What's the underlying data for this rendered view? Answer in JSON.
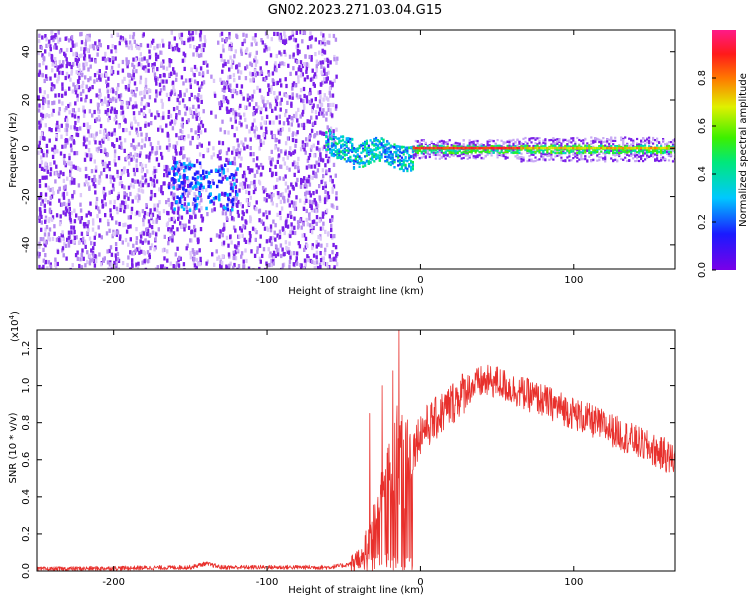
{
  "title": "GN02.2023.271.03.04.G15",
  "colors": {
    "axis": "#000000",
    "snr_line": "#e8302c"
  },
  "chart_data": [
    {
      "type": "heatmap",
      "xlabel": "Height of straight line (km)",
      "ylabel": "Frequency (Hz)",
      "xlim": [
        -250,
        166
      ],
      "ylim": [
        -50,
        49
      ],
      "xticks": [
        -200,
        -100,
        0,
        100
      ],
      "yticks": [
        -40,
        -20,
        0,
        20,
        40
      ],
      "colorbar": {
        "label": "Normalized spectral amplitude",
        "range": [
          0,
          1
        ],
        "ticks": [
          "0.0",
          "0.2",
          "0.4",
          "0.6",
          "0.8"
        ],
        "colormap": "rainbow (purple-blue-cyan-green-yellow-red-magenta)"
      },
      "features": {
        "noise_region_x": [
          -250,
          -55
        ],
        "signal_onset_x": -62,
        "peak_band_x": [
          -10,
          65
        ],
        "peak_frequency": 0
      }
    },
    {
      "type": "line",
      "xlabel": "Height of straight line (km)",
      "ylabel": "SNR (10 * v/v)",
      "yscale_label_base": "(x10",
      "yscale_label_exp": "4",
      "yscale_label_close": ")",
      "xlim": [
        -250,
        166
      ],
      "ylim": [
        0,
        1.3
      ],
      "xticks": [
        -200,
        -100,
        0,
        100
      ],
      "yticks": [
        "0.0",
        "0.2",
        "0.4",
        "0.6",
        "0.8",
        "1.0",
        "1.2"
      ],
      "envelope": {
        "x": [
          -250,
          -200,
          -150,
          -140,
          -130,
          -100,
          -60,
          -50,
          -40,
          -35,
          -30,
          -25,
          -20,
          -15,
          -10,
          -5,
          0,
          10,
          20,
          30,
          40,
          50,
          60,
          80,
          100,
          120,
          140,
          160,
          166
        ],
        "y": [
          0.01,
          0.015,
          0.02,
          0.04,
          0.02,
          0.02,
          0.02,
          0.03,
          0.05,
          0.15,
          0.3,
          0.4,
          0.55,
          0.65,
          0.55,
          0.65,
          0.75,
          0.82,
          0.9,
          0.98,
          1.02,
          1.02,
          0.98,
          0.92,
          0.85,
          0.78,
          0.7,
          0.62,
          0.6
        ]
      },
      "spikes": [
        {
          "x": -33,
          "y": 0.85
        },
        {
          "x": -25,
          "y": 1.0
        },
        {
          "x": -18,
          "y": 1.08
        },
        {
          "x": -14,
          "y": 1.3
        },
        {
          "x": 159,
          "y": 0.72
        }
      ]
    }
  ]
}
